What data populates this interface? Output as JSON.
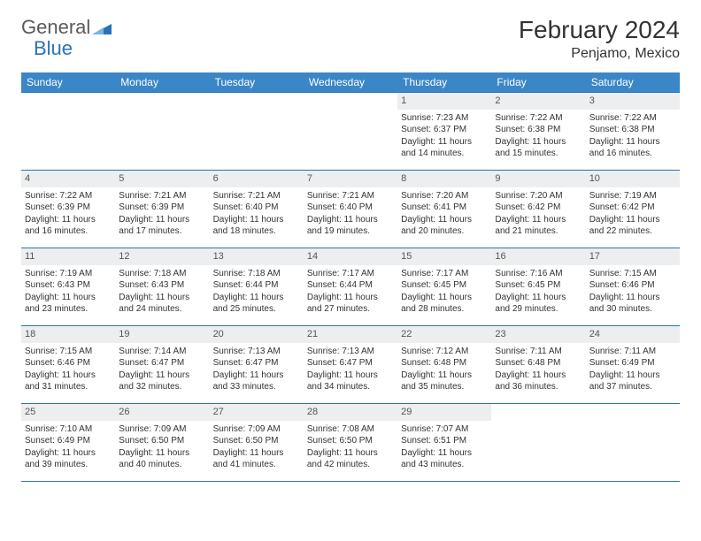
{
  "brand": {
    "part1": "General",
    "part2": "Blue"
  },
  "title": "February 2024",
  "location": "Penjamo, Mexico",
  "colors": {
    "header_bg": "#3b86c6",
    "border": "#2a72b5",
    "daynum_bg": "#eceeef",
    "text": "#333333",
    "logo_gray": "#5a5a5a",
    "logo_blue": "#2a72b5"
  },
  "weekdays": [
    "Sunday",
    "Monday",
    "Tuesday",
    "Wednesday",
    "Thursday",
    "Friday",
    "Saturday"
  ],
  "lead_blank": 4,
  "days": [
    {
      "n": 1,
      "sunrise": "7:23 AM",
      "sunset": "6:37 PM",
      "daylight": "11 hours and 14 minutes."
    },
    {
      "n": 2,
      "sunrise": "7:22 AM",
      "sunset": "6:38 PM",
      "daylight": "11 hours and 15 minutes."
    },
    {
      "n": 3,
      "sunrise": "7:22 AM",
      "sunset": "6:38 PM",
      "daylight": "11 hours and 16 minutes."
    },
    {
      "n": 4,
      "sunrise": "7:22 AM",
      "sunset": "6:39 PM",
      "daylight": "11 hours and 16 minutes."
    },
    {
      "n": 5,
      "sunrise": "7:21 AM",
      "sunset": "6:39 PM",
      "daylight": "11 hours and 17 minutes."
    },
    {
      "n": 6,
      "sunrise": "7:21 AM",
      "sunset": "6:40 PM",
      "daylight": "11 hours and 18 minutes."
    },
    {
      "n": 7,
      "sunrise": "7:21 AM",
      "sunset": "6:40 PM",
      "daylight": "11 hours and 19 minutes."
    },
    {
      "n": 8,
      "sunrise": "7:20 AM",
      "sunset": "6:41 PM",
      "daylight": "11 hours and 20 minutes."
    },
    {
      "n": 9,
      "sunrise": "7:20 AM",
      "sunset": "6:42 PM",
      "daylight": "11 hours and 21 minutes."
    },
    {
      "n": 10,
      "sunrise": "7:19 AM",
      "sunset": "6:42 PM",
      "daylight": "11 hours and 22 minutes."
    },
    {
      "n": 11,
      "sunrise": "7:19 AM",
      "sunset": "6:43 PM",
      "daylight": "11 hours and 23 minutes."
    },
    {
      "n": 12,
      "sunrise": "7:18 AM",
      "sunset": "6:43 PM",
      "daylight": "11 hours and 24 minutes."
    },
    {
      "n": 13,
      "sunrise": "7:18 AM",
      "sunset": "6:44 PM",
      "daylight": "11 hours and 25 minutes."
    },
    {
      "n": 14,
      "sunrise": "7:17 AM",
      "sunset": "6:44 PM",
      "daylight": "11 hours and 27 minutes."
    },
    {
      "n": 15,
      "sunrise": "7:17 AM",
      "sunset": "6:45 PM",
      "daylight": "11 hours and 28 minutes."
    },
    {
      "n": 16,
      "sunrise": "7:16 AM",
      "sunset": "6:45 PM",
      "daylight": "11 hours and 29 minutes."
    },
    {
      "n": 17,
      "sunrise": "7:15 AM",
      "sunset": "6:46 PM",
      "daylight": "11 hours and 30 minutes."
    },
    {
      "n": 18,
      "sunrise": "7:15 AM",
      "sunset": "6:46 PM",
      "daylight": "11 hours and 31 minutes."
    },
    {
      "n": 19,
      "sunrise": "7:14 AM",
      "sunset": "6:47 PM",
      "daylight": "11 hours and 32 minutes."
    },
    {
      "n": 20,
      "sunrise": "7:13 AM",
      "sunset": "6:47 PM",
      "daylight": "11 hours and 33 minutes."
    },
    {
      "n": 21,
      "sunrise": "7:13 AM",
      "sunset": "6:47 PM",
      "daylight": "11 hours and 34 minutes."
    },
    {
      "n": 22,
      "sunrise": "7:12 AM",
      "sunset": "6:48 PM",
      "daylight": "11 hours and 35 minutes."
    },
    {
      "n": 23,
      "sunrise": "7:11 AM",
      "sunset": "6:48 PM",
      "daylight": "11 hours and 36 minutes."
    },
    {
      "n": 24,
      "sunrise": "7:11 AM",
      "sunset": "6:49 PM",
      "daylight": "11 hours and 37 minutes."
    },
    {
      "n": 25,
      "sunrise": "7:10 AM",
      "sunset": "6:49 PM",
      "daylight": "11 hours and 39 minutes."
    },
    {
      "n": 26,
      "sunrise": "7:09 AM",
      "sunset": "6:50 PM",
      "daylight": "11 hours and 40 minutes."
    },
    {
      "n": 27,
      "sunrise": "7:09 AM",
      "sunset": "6:50 PM",
      "daylight": "11 hours and 41 minutes."
    },
    {
      "n": 28,
      "sunrise": "7:08 AM",
      "sunset": "6:50 PM",
      "daylight": "11 hours and 42 minutes."
    },
    {
      "n": 29,
      "sunrise": "7:07 AM",
      "sunset": "6:51 PM",
      "daylight": "11 hours and 43 minutes."
    }
  ],
  "labels": {
    "sunrise": "Sunrise:",
    "sunset": "Sunset:",
    "daylight": "Daylight:"
  }
}
